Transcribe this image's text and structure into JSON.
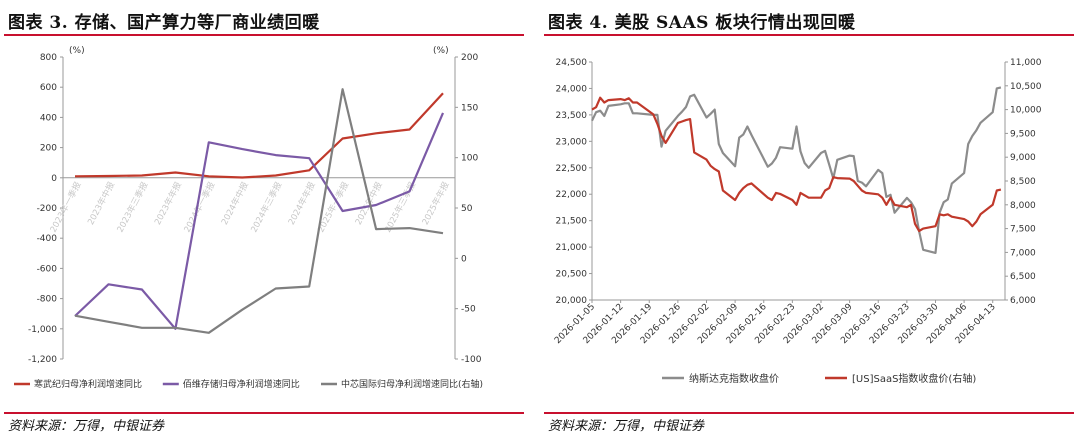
{
  "left": {
    "title": "图表 3. 存储、国产算力等厂商业绩回暖",
    "source": "资料来源：万得，中银证券",
    "chart_data": {
      "type": "line",
      "categories": [
        "2023年一季报",
        "2023年中报",
        "2023年三季报",
        "2023年年报",
        "2024年一季报",
        "2024年中报",
        "2024年三季报",
        "2024年年报",
        "2025年一季报",
        "2025年中报",
        "2025年三季报",
        "2025年年报"
      ],
      "y_left": {
        "unit": "(%)",
        "ticks": [
          "800",
          "600",
          "400",
          "200",
          "0",
          "-200",
          "-400",
          "-600",
          "-800",
          "-1,000",
          "-1,200"
        ],
        "ylim": [
          -1200,
          800
        ]
      },
      "y_right": {
        "unit": "(%)",
        "ticks": [
          "200",
          "150",
          "100",
          "50",
          "0",
          "-50",
          "-100"
        ],
        "ylim": [
          -100,
          200
        ]
      },
      "series": [
        {
          "name": "寒武纪归母净利润增速同比",
          "axis": "left",
          "color": "#c0392b",
          "values": [
            10,
            12,
            15,
            35,
            10,
            2,
            15,
            50,
            260,
            295,
            320,
            560
          ]
        },
        {
          "name": "佰维存储归母净利润增速同比",
          "axis": "left",
          "color": "#7b5aa6",
          "values": [
            -915,
            -705,
            -740,
            -1000,
            235,
            190,
            150,
            130,
            -220,
            -180,
            -90,
            430
          ]
        },
        {
          "name": "中芯国际归母净利润增速同比(右轴)",
          "axis": "right",
          "color": "#7f7f7f",
          "values": [
            -57,
            -63,
            -69,
            -69,
            -74,
            -51,
            -30,
            -28,
            168,
            29,
            30,
            25
          ]
        }
      ]
    }
  },
  "right": {
    "title": "图表 4. 美股 SAAS 板块行情出现回暖",
    "source": "资料来源：万得，中银证券",
    "chart_data": {
      "type": "line",
      "x_ticks": [
        "2026-01-05",
        "2026-01-12",
        "2026-01-19",
        "2026-01-26",
        "2026-02-02",
        "2026-02-09",
        "2026-02-16",
        "2026-02-23",
        "2026-03-02",
        "2026-03-09",
        "2026-03-16",
        "2026-03-23",
        "2026-03-30",
        "2026-04-06",
        "2026-04-13"
      ],
      "x_range": [
        "2026-01-05",
        "2026-04-16"
      ],
      "y_left": {
        "ticks": [
          "24,500",
          "24,000",
          "23,500",
          "23,000",
          "22,500",
          "22,000",
          "21,500",
          "21,000",
          "20,500",
          "20,000"
        ],
        "ylim": [
          20000,
          24500
        ]
      },
      "y_right": {
        "ticks": [
          "11,000",
          "10,500",
          "10,000",
          "9,500",
          "9,000",
          "8,500",
          "8,000",
          "7,500",
          "7,000",
          "6,500",
          "6,000"
        ],
        "ylim": [
          6000,
          11000
        ]
      },
      "series": [
        {
          "name": "纳斯达克指数收盘价",
          "axis": "left",
          "color": "#8c8c8c",
          "points": [
            [
              "2026-01-05",
              23390
            ],
            [
              "2026-01-06",
              23550
            ],
            [
              "2026-01-07",
              23580
            ],
            [
              "2026-01-08",
              23480
            ],
            [
              "2026-01-09",
              23670
            ],
            [
              "2026-01-12",
              23700
            ],
            [
              "2026-01-13",
              23720
            ],
            [
              "2026-01-14",
              23720
            ],
            [
              "2026-01-15",
              23530
            ],
            [
              "2026-01-16",
              23530
            ],
            [
              "2026-01-20",
              23500
            ],
            [
              "2026-01-21",
              23500
            ],
            [
              "2026-01-22",
              22900
            ],
            [
              "2026-01-23",
              23200
            ],
            [
              "2026-01-26",
              23480
            ],
            [
              "2026-01-27",
              23560
            ],
            [
              "2026-01-28",
              23650
            ],
            [
              "2026-01-29",
              23850
            ],
            [
              "2026-01-30",
              23880
            ],
            [
              "2026-02-02",
              23450
            ],
            [
              "2026-02-03",
              23520
            ],
            [
              "2026-02-04",
              23600
            ],
            [
              "2026-02-05",
              22950
            ],
            [
              "2026-02-06",
              22780
            ],
            [
              "2026-02-09",
              22530
            ],
            [
              "2026-02-10",
              23070
            ],
            [
              "2026-02-11",
              23130
            ],
            [
              "2026-02-12",
              23280
            ],
            [
              "2026-02-13",
              23120
            ],
            [
              "2026-02-17",
              22520
            ],
            [
              "2026-02-18",
              22580
            ],
            [
              "2026-02-19",
              22690
            ],
            [
              "2026-02-20",
              22890
            ],
            [
              "2026-02-23",
              22860
            ],
            [
              "2026-02-24",
              23280
            ],
            [
              "2026-02-25",
              22810
            ],
            [
              "2026-02-26",
              22590
            ],
            [
              "2026-02-27",
              22500
            ],
            [
              "2026-03-02",
              22780
            ],
            [
              "2026-03-03",
              22820
            ],
            [
              "2026-03-04",
              22560
            ],
            [
              "2026-03-05",
              22300
            ],
            [
              "2026-03-06",
              22650
            ],
            [
              "2026-03-09",
              22730
            ],
            [
              "2026-03-10",
              22720
            ],
            [
              "2026-03-11",
              22250
            ],
            [
              "2026-03-12",
              22220
            ],
            [
              "2026-03-13",
              22150
            ],
            [
              "2026-03-16",
              22460
            ],
            [
              "2026-03-17",
              22400
            ],
            [
              "2026-03-18",
              21950
            ],
            [
              "2026-03-19",
              21990
            ],
            [
              "2026-03-20",
              21650
            ],
            [
              "2026-03-23",
              21930
            ],
            [
              "2026-03-24",
              21850
            ],
            [
              "2026-03-25",
              21720
            ],
            [
              "2026-03-26",
              21300
            ],
            [
              "2026-03-27",
              20950
            ],
            [
              "2026-03-30",
              20890
            ],
            [
              "2026-03-31",
              21650
            ],
            [
              "2026-04-01",
              21850
            ],
            [
              "2026-04-02",
              21900
            ],
            [
              "2026-04-03",
              22200
            ],
            [
              "2026-04-06",
              22400
            ],
            [
              "2026-04-07",
              22950
            ],
            [
              "2026-04-08",
              23100
            ],
            [
              "2026-04-09",
              23210
            ],
            [
              "2026-04-10",
              23350
            ],
            [
              "2026-04-13",
              23550
            ],
            [
              "2026-04-14",
              24000
            ],
            [
              "2026-04-15",
              24020
            ]
          ]
        },
        {
          "name": "[US]SaaS指数收盘价(右轴)",
          "axis": "right",
          "color": "#c0392b",
          "points": [
            [
              "2026-01-05",
              10000
            ],
            [
              "2026-01-06",
              10050
            ],
            [
              "2026-01-07",
              10250
            ],
            [
              "2026-01-08",
              10150
            ],
            [
              "2026-01-09",
              10200
            ],
            [
              "2026-01-12",
              10220
            ],
            [
              "2026-01-13",
              10200
            ],
            [
              "2026-01-14",
              10240
            ],
            [
              "2026-01-15",
              10150
            ],
            [
              "2026-01-16",
              10150
            ],
            [
              "2026-01-20",
              9900
            ],
            [
              "2026-01-21",
              9700
            ],
            [
              "2026-01-22",
              9450
            ],
            [
              "2026-01-23",
              9300
            ],
            [
              "2026-01-26",
              9720
            ],
            [
              "2026-01-27",
              9750
            ],
            [
              "2026-01-28",
              9780
            ],
            [
              "2026-01-29",
              9800
            ],
            [
              "2026-01-30",
              9100
            ],
            [
              "2026-02-02",
              8950
            ],
            [
              "2026-02-03",
              8820
            ],
            [
              "2026-02-04",
              8750
            ],
            [
              "2026-02-05",
              8700
            ],
            [
              "2026-02-06",
              8300
            ],
            [
              "2026-02-09",
              8100
            ],
            [
              "2026-02-10",
              8250
            ],
            [
              "2026-02-11",
              8350
            ],
            [
              "2026-02-12",
              8420
            ],
            [
              "2026-02-13",
              8450
            ],
            [
              "2026-02-17",
              8150
            ],
            [
              "2026-02-18",
              8100
            ],
            [
              "2026-02-19",
              8250
            ],
            [
              "2026-02-20",
              8230
            ],
            [
              "2026-02-23",
              8100
            ],
            [
              "2026-02-24",
              8000
            ],
            [
              "2026-02-25",
              8250
            ],
            [
              "2026-02-26",
              8200
            ],
            [
              "2026-02-27",
              8150
            ],
            [
              "2026-03-02",
              8150
            ],
            [
              "2026-03-03",
              8300
            ],
            [
              "2026-03-04",
              8350
            ],
            [
              "2026-03-05",
              8580
            ],
            [
              "2026-03-06",
              8560
            ],
            [
              "2026-03-09",
              8550
            ],
            [
              "2026-03-10",
              8500
            ],
            [
              "2026-03-11",
              8400
            ],
            [
              "2026-03-12",
              8300
            ],
            [
              "2026-03-13",
              8250
            ],
            [
              "2026-03-16",
              8220
            ],
            [
              "2026-03-17",
              8150
            ],
            [
              "2026-03-18",
              8000
            ],
            [
              "2026-03-19",
              8150
            ],
            [
              "2026-03-20",
              8000
            ],
            [
              "2026-03-23",
              7950
            ],
            [
              "2026-03-24",
              8000
            ],
            [
              "2026-03-25",
              7600
            ],
            [
              "2026-03-26",
              7450
            ],
            [
              "2026-03-27",
              7500
            ],
            [
              "2026-03-30",
              7550
            ],
            [
              "2026-03-31",
              7800
            ],
            [
              "2026-04-01",
              7780
            ],
            [
              "2026-04-02",
              7800
            ],
            [
              "2026-04-03",
              7750
            ],
            [
              "2026-04-06",
              7700
            ],
            [
              "2026-04-07",
              7650
            ],
            [
              "2026-04-08",
              7550
            ],
            [
              "2026-04-09",
              7650
            ],
            [
              "2026-04-10",
              7800
            ],
            [
              "2026-04-13",
              8000
            ],
            [
              "2026-04-14",
              8300
            ],
            [
              "2026-04-15",
              8320
            ]
          ]
        }
      ]
    }
  }
}
